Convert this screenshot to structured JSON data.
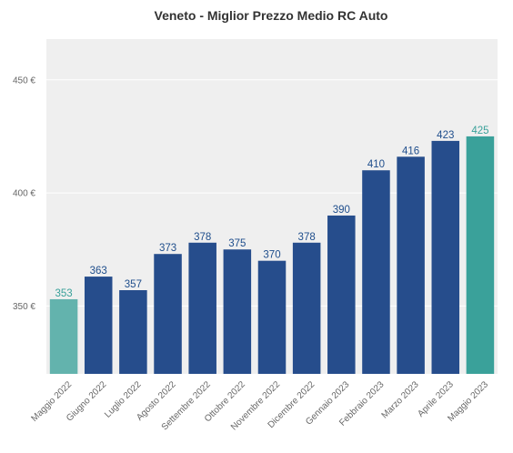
{
  "chart_data": {
    "type": "bar",
    "title": "Veneto - Miglior Prezzo Medio RC Auto",
    "xlabel": "",
    "ylabel": "",
    "ylim": [
      320,
      468
    ],
    "y_ticks": [
      350,
      400,
      450
    ],
    "y_tick_labels": [
      "350 €",
      "400 €",
      "450 €"
    ],
    "grid": true,
    "categories": [
      "Maggio 2022",
      "Giugno 2022",
      "Luglio 2022",
      "Agosto 2022",
      "Settembre 2022",
      "Ottobre 2022",
      "Novembre 2022",
      "Dicembre 2022",
      "Gennaio 2023",
      "Febbraio 2023",
      "Marzo 2023",
      "Aprile 2023",
      "Maggio 2023"
    ],
    "values": [
      353,
      363,
      357,
      373,
      378,
      375,
      370,
      378,
      390,
      410,
      416,
      423,
      425
    ],
    "data_labels": [
      "353",
      "363",
      "357",
      "373",
      "378",
      "375",
      "370",
      "378",
      "390",
      "410",
      "416",
      "423",
      "425"
    ],
    "bar_colors": [
      "#63b3ad",
      "#264d8c",
      "#264d8c",
      "#264d8c",
      "#264d8c",
      "#264d8c",
      "#264d8c",
      "#264d8c",
      "#264d8c",
      "#264d8c",
      "#264d8c",
      "#264d8c",
      "#3aa19a"
    ],
    "label_colors": [
      "#3aa19a",
      "#1f4e8c",
      "#1f4e8c",
      "#1f4e8c",
      "#1f4e8c",
      "#1f4e8c",
      "#1f4e8c",
      "#1f4e8c",
      "#1f4e8c",
      "#1f4e8c",
      "#1f4e8c",
      "#1f4e8c",
      "#3aa19a"
    ],
    "plot_background": "#efefef",
    "gridline_color": "#ffffff"
  }
}
